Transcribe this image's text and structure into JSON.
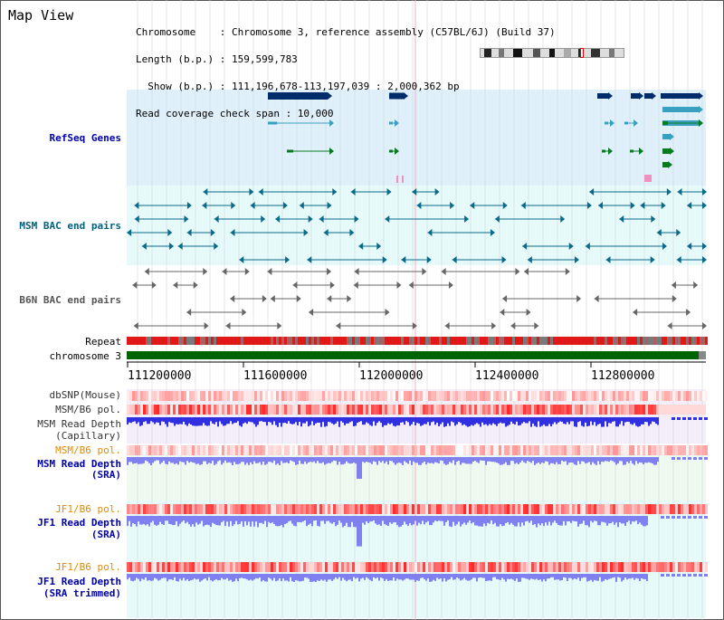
{
  "header": {
    "title": "Map View",
    "info_lines": [
      "Chromosome    : Chromosome 3, reference assembly (C57BL/6J) (Build 37)",
      "Length (b.p.) : 159,599,783",
      "  Show (b.p.) : 111,196,678-113,197,039 : 2,000,362 bp",
      "Read coverage check span : 10,000"
    ]
  },
  "tracks": {
    "refseq": "RefSeq Genes",
    "msm_bac": "MSM BAC end pairs",
    "b6n_bac": "B6N BAC end pairs",
    "repeat": "Repeat",
    "chromosome": "chromosome 3",
    "dbsnp": "dbSNP(Mouse)",
    "msm_b6_pol": "MSM/B6 pol.",
    "msm_read_depth_cap_1": "MSM Read Depth",
    "msm_read_depth_cap_2": "(Capillary)",
    "msm_b6_pol_2": "MSM/B6 pol.",
    "msm_read_depth_sra_1": "MSM Read Depth",
    "msm_read_depth_sra_2": "(SRA)",
    "jf1_b6_pol": "JF1/B6 pol.",
    "jf1_read_depth_sra_1": "JF1 Read Depth",
    "jf1_read_depth_sra_2": "(SRA)",
    "jf1_b6_pol_2": "JF1/B6 pol.",
    "jf1_read_depth_trim_1": "JF1 Read Depth",
    "jf1_read_depth_trim_2": "(SRA trimmed)"
  },
  "axis": {
    "ticks": [
      "111200000",
      "111600000",
      "112000000",
      "112400000",
      "112800000"
    ]
  },
  "colors": {
    "refseq_bg": "#dff0fb",
    "msm_bac_bg": "#e7fafa",
    "b6n_bac_bg": "#ffffff",
    "chromosome": "#006400",
    "repeat": "#e01818",
    "depth_blue": "#3030e0",
    "depth_light": "#8080f0",
    "label_blue": "#0000aa",
    "label_teal": "#006080",
    "label_orange": "#e08a00"
  }
}
